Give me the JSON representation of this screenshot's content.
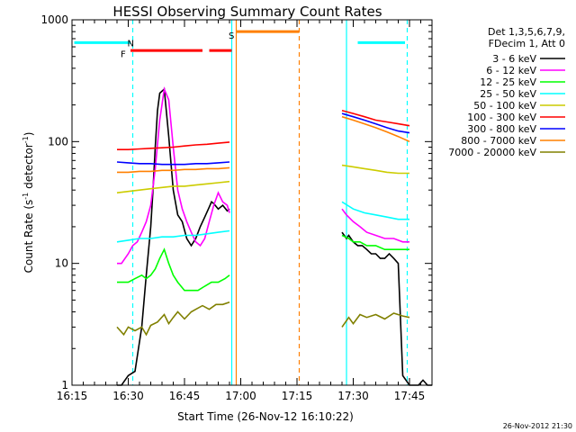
{
  "chart_data": {
    "type": "line",
    "title": "HESSI Observing Summary Count Rates",
    "xlabel": "Start Time (26-Nov-12 16:10:22)",
    "ylabel_main": "Count Rate (s",
    "ylabel_sup1": "-1",
    "ylabel_mid": " detector",
    "ylabel_sup2": "-1",
    "ylabel_end": ")",
    "y_scale": "log",
    "ylim": [
      1,
      1000
    ],
    "xlim_minutes": [
      16.25,
      17.85
    ],
    "x_ticks": [
      {
        "label": "16:15",
        "t": 16.25
      },
      {
        "label": "16:30",
        "t": 16.5
      },
      {
        "label": "16:45",
        "t": 16.75
      },
      {
        "label": "17:00",
        "t": 17.0
      },
      {
        "label": "17:15",
        "t": 17.25
      },
      {
        "label": "17:30",
        "t": 17.5
      },
      {
        "label": "17:45",
        "t": 17.75
      }
    ],
    "y_ticks": [
      {
        "label": "1",
        "v": 1
      },
      {
        "label": "10",
        "v": 10
      },
      {
        "label": "100",
        "v": 100
      },
      {
        "label": "1000",
        "v": 1000
      }
    ],
    "legend_header": [
      "Det 1,3,5,6,7,9,",
      "FDecim 1, Att 0"
    ],
    "legend_position": "right",
    "annotations": [
      {
        "label": "N",
        "t": 16.52,
        "v": 650,
        "color": "#00ffff"
      },
      {
        "label": "F",
        "t": 16.49,
        "v": 530,
        "color": "#ff0000"
      },
      {
        "label": "S",
        "t": 16.97,
        "v": 750,
        "color": "#ff8000"
      }
    ],
    "bars": [
      {
        "color": "#00ffff",
        "v": 650,
        "segments": [
          [
            16.26,
            16.51
          ],
          [
            17.52,
            17.73
          ]
        ]
      },
      {
        "color": "#ff0000",
        "v": 560,
        "segments": [
          [
            16.51,
            16.83
          ],
          [
            16.86,
            16.96
          ]
        ]
      },
      {
        "color": "#ff8000",
        "v": 800,
        "segments": [
          [
            16.98,
            17.26
          ]
        ]
      }
    ],
    "vlines": [
      {
        "t": 16.52,
        "color": "#00ffff",
        "dash": true
      },
      {
        "t": 16.96,
        "color": "#00ffff",
        "dash": false
      },
      {
        "t": 16.98,
        "color": "#ff8000",
        "dash": false
      },
      {
        "t": 17.26,
        "color": "#ff8000",
        "dash": true
      },
      {
        "t": 17.47,
        "color": "#00ffff",
        "dash": false
      },
      {
        "t": 17.74,
        "color": "#00ffff",
        "dash": true
      }
    ],
    "series": [
      {
        "name": "3 - 6 keV",
        "color": "#000000",
        "segments": [
          {
            "t": [
              16.45,
              16.47,
              16.5,
              16.53,
              16.56,
              16.58,
              16.6,
              16.61,
              16.62,
              16.63,
              16.64,
              16.66,
              16.68,
              16.7,
              16.72,
              16.74,
              16.76,
              16.78,
              16.8,
              16.82,
              16.84,
              16.86,
              16.87,
              16.88,
              16.9,
              16.92,
              16.94,
              16.95
            ],
            "v": [
              1,
              1,
              1.2,
              1.3,
              3,
              8,
              20,
              40,
              90,
              180,
              250,
              270,
              110,
              40,
              25,
              22,
              16,
              14,
              16,
              20,
              24,
              29,
              32,
              31,
              28,
              30,
              27,
              28
            ]
          },
          {
            "t": [
              17.45,
              17.47,
              17.48,
              17.5,
              17.52,
              17.54,
              17.56,
              17.58,
              17.6,
              17.62,
              17.64,
              17.66,
              17.68,
              17.7,
              17.72,
              17.75,
              17.77,
              17.79,
              17.81,
              17.83,
              17.85
            ],
            "v": [
              18,
              16,
              17,
              15,
              14,
              14,
              13,
              12,
              12,
              11,
              11,
              12,
              11,
              10,
              1.2,
              1,
              1,
              1,
              1.1,
              1,
              1
            ]
          }
        ]
      },
      {
        "name": "6 - 12 keV",
        "color": "#ff00ff",
        "segments": [
          {
            "t": [
              16.45,
              16.47,
              16.5,
              16.52,
              16.54,
              16.56,
              16.58,
              16.6,
              16.62,
              16.64,
              16.66,
              16.68,
              16.7,
              16.72,
              16.74,
              16.76,
              16.78,
              16.8,
              16.82,
              16.84,
              16.86,
              16.88,
              16.9,
              16.92,
              16.94,
              16.95
            ],
            "v": [
              10,
              10,
              12,
              14,
              15,
              18,
              22,
              30,
              60,
              150,
              270,
              220,
              90,
              40,
              28,
              22,
              18,
              15,
              14,
              16,
              22,
              30,
              38,
              32,
              30,
              26
            ]
          },
          {
            "t": [
              17.45,
              17.47,
              17.5,
              17.53,
              17.56,
              17.6,
              17.64,
              17.68,
              17.72,
              17.75
            ],
            "v": [
              28,
              25,
              22,
              20,
              18,
              17,
              16,
              16,
              15,
              15
            ]
          }
        ]
      },
      {
        "name": "12 - 25 keV",
        "color": "#00ff00",
        "segments": [
          {
            "t": [
              16.45,
              16.48,
              16.5,
              16.53,
              16.56,
              16.58,
              16.6,
              16.62,
              16.64,
              16.66,
              16.68,
              16.7,
              16.72,
              16.75,
              16.78,
              16.81,
              16.84,
              16.87,
              16.9,
              16.93,
              16.95
            ],
            "v": [
              7,
              7,
              7,
              7.5,
              8,
              7.5,
              8,
              9,
              11,
              13,
              10,
              8,
              7,
              6,
              6,
              6,
              6.5,
              7,
              7,
              7.5,
              8
            ]
          },
          {
            "t": [
              17.45,
              17.48,
              17.5,
              17.53,
              17.56,
              17.6,
              17.64,
              17.68,
              17.72,
              17.75
            ],
            "v": [
              17,
              16,
              15,
              15,
              14,
              14,
              13,
              13,
              13,
              13
            ]
          }
        ]
      },
      {
        "name": "25 - 50 keV",
        "color": "#00ffff",
        "segments": [
          {
            "t": [
              16.45,
              16.5,
              16.55,
              16.6,
              16.65,
              16.7,
              16.75,
              16.8,
              16.85,
              16.9,
              16.95
            ],
            "v": [
              15,
              15.5,
              16,
              16,
              16.5,
              16.5,
              17,
              17,
              17.5,
              18,
              18.5
            ]
          },
          {
            "t": [
              17.45,
              17.5,
              17.55,
              17.6,
              17.65,
              17.7,
              17.75
            ],
            "v": [
              32,
              28,
              26,
              25,
              24,
              23,
              23
            ]
          }
        ]
      },
      {
        "name": "50 - 100 keV",
        "color": "#cccc00",
        "segments": [
          {
            "t": [
              16.45,
              16.5,
              16.55,
              16.6,
              16.65,
              16.7,
              16.75,
              16.8,
              16.85,
              16.9,
              16.95
            ],
            "v": [
              38,
              39,
              40,
              41,
              42,
              43,
              43,
              44,
              45,
              46,
              47
            ]
          },
          {
            "t": [
              17.45,
              17.5,
              17.55,
              17.6,
              17.65,
              17.7,
              17.75
            ],
            "v": [
              64,
              62,
              60,
              58,
              56,
              55,
              55
            ]
          }
        ]
      },
      {
        "name": "100 - 300 keV",
        "color": "#ff0000",
        "segments": [
          {
            "t": [
              16.45,
              16.5,
              16.55,
              16.6,
              16.65,
              16.7,
              16.75,
              16.8,
              16.85,
              16.9,
              16.95
            ],
            "v": [
              86,
              86,
              87,
              88,
              89,
              90,
              92,
              94,
              95,
              97,
              99
            ]
          },
          {
            "t": [
              17.45,
              17.5,
              17.55,
              17.6,
              17.65,
              17.7,
              17.75
            ],
            "v": [
              180,
              170,
              160,
              150,
              145,
              140,
              135
            ]
          }
        ]
      },
      {
        "name": "300 - 800 keV",
        "color": "#0000ff",
        "segments": [
          {
            "t": [
              16.45,
              16.5,
              16.55,
              16.6,
              16.65,
              16.7,
              16.75,
              16.8,
              16.85,
              16.9,
              16.95
            ],
            "v": [
              68,
              67,
              66,
              66,
              65,
              65,
              65,
              66,
              66,
              67,
              68
            ]
          },
          {
            "t": [
              17.45,
              17.5,
              17.55,
              17.6,
              17.65,
              17.7,
              17.75
            ],
            "v": [
              170,
              160,
              150,
              140,
              130,
              122,
              118
            ]
          }
        ]
      },
      {
        "name": "800 - 7000 keV",
        "color": "#ff8000",
        "segments": [
          {
            "t": [
              16.45,
              16.5,
              16.55,
              16.6,
              16.65,
              16.7,
              16.75,
              16.8,
              16.85,
              16.9,
              16.95
            ],
            "v": [
              56,
              56,
              57,
              57,
              58,
              58,
              59,
              59,
              60,
              60,
              61
            ]
          },
          {
            "t": [
              17.45,
              17.5,
              17.55,
              17.6,
              17.65,
              17.7,
              17.75
            ],
            "v": [
              160,
              150,
              140,
              130,
              120,
              110,
              100
            ]
          }
        ]
      },
      {
        "name": "7000 - 20000 keV",
        "color": "#808000",
        "segments": [
          {
            "t": [
              16.45,
              16.48,
              16.5,
              16.53,
              16.56,
              16.58,
              16.6,
              16.63,
              16.66,
              16.68,
              16.7,
              16.72,
              16.75,
              16.78,
              16.8,
              16.83,
              16.86,
              16.89,
              16.92,
              16.95
            ],
            "v": [
              3,
              2.6,
              3,
              2.8,
              3,
              2.6,
              3.1,
              3.3,
              3.8,
              3.2,
              3.6,
              4,
              3.5,
              4,
              4.2,
              4.5,
              4.2,
              4.6,
              4.6,
              4.8
            ]
          },
          {
            "t": [
              17.45,
              17.48,
              17.5,
              17.53,
              17.56,
              17.6,
              17.64,
              17.68,
              17.72,
              17.75
            ],
            "v": [
              3,
              3.6,
              3.2,
              3.8,
              3.6,
              3.8,
              3.5,
              3.9,
              3.7,
              3.6
            ]
          }
        ]
      }
    ]
  },
  "footer": {
    "timestamp": "26-Nov-2012 21:30"
  }
}
